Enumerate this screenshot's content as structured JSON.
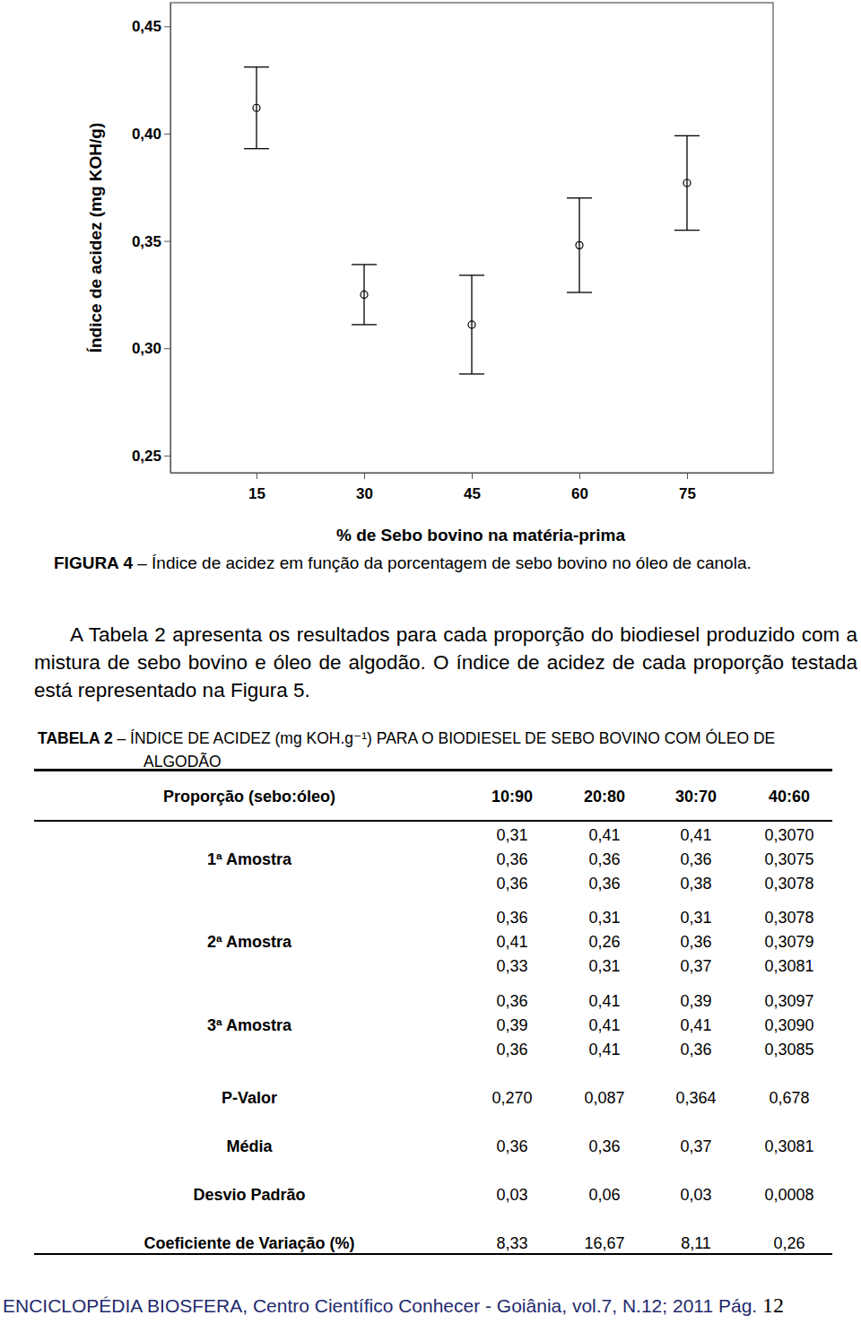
{
  "chart_data": {
    "type": "scatter",
    "x_label": "% de Sebo bovino na matéria-prima",
    "y_label": "Índice de acidez (mg KOH/g)",
    "categories": [
      "15",
      "30",
      "45",
      "60",
      "75"
    ],
    "values": [
      0.412,
      0.325,
      0.311,
      0.348,
      0.377
    ],
    "errors": [
      0.019,
      0.014,
      0.023,
      0.022,
      0.022
    ],
    "color": "#000000",
    "marker": "circle",
    "grid": false,
    "ylim": [
      0.242,
      0.461
    ],
    "yticks": [
      {
        "value": 0.25,
        "label": "0,25"
      },
      {
        "value": 0.3,
        "label": "0,30"
      },
      {
        "value": 0.35,
        "label": "0,35"
      },
      {
        "value": 0.4,
        "label": "0,40"
      },
      {
        "value": 0.45,
        "label": "0,45"
      }
    ]
  },
  "caption": {
    "label": "FIGURA 4",
    "text": "– Índice de acidez em função da porcentagem de sebo bovino no óleo de canola."
  },
  "paragraph": "A Tabela 2 apresenta os resultados para cada proporção do biodiesel produzido com a mistura de sebo bovino e óleo de algodão. O índice de acidez de cada proporção testada está representado na Figura 5.",
  "table": {
    "label": "TABELA 2",
    "title": "– ÍNDICE DE ACIDEZ (mg KOH.g⁻¹) PARA O BIODIESEL DE SEBO BOVINO COM ÓLEO DE ALGODÃO",
    "header": [
      "Proporção (sebo:óleo)",
      "10:90",
      "20:80",
      "30:70",
      "40:60"
    ],
    "groups": [
      {
        "label": "1ª Amostra",
        "rows": [
          [
            "0,31",
            "0,41",
            "0,41",
            "0,3070"
          ],
          [
            "0,36",
            "0,36",
            "0,36",
            "0,3075"
          ],
          [
            "0,36",
            "0,36",
            "0,38",
            "0,3078"
          ]
        ]
      },
      {
        "label": "2ª Amostra",
        "rows": [
          [
            "0,36",
            "0,31",
            "0,31",
            "0,3078"
          ],
          [
            "0,41",
            "0,26",
            "0,36",
            "0,3079"
          ],
          [
            "0,33",
            "0,31",
            "0,37",
            "0,3081"
          ]
        ]
      },
      {
        "label": "3ª Amostra",
        "rows": [
          [
            "0,36",
            "0,41",
            "0,39",
            "0,3097"
          ],
          [
            "0,39",
            "0,41",
            "0,41",
            "0,3090"
          ],
          [
            "0,36",
            "0,41",
            "0,36",
            "0,3085"
          ]
        ]
      }
    ],
    "stats": [
      {
        "label": "P-Valor",
        "values": [
          "0,270",
          "0,087",
          "0,364",
          "0,678"
        ]
      },
      {
        "label": "Média",
        "values": [
          "0,36",
          "0,36",
          "0,37",
          "0,3081"
        ]
      },
      {
        "label": "Desvio Padrão",
        "values": [
          "0,03",
          "0,06",
          "0,03",
          "0,0008"
        ]
      },
      {
        "label": "Coeficiente de Variação (%)",
        "values": [
          "8,33",
          "16,67",
          "8,11",
          "0,26"
        ]
      }
    ]
  },
  "footer": {
    "text": "ENCICLOPÉDIA BIOSFERA, Centro Científico Conhecer - Goiânia, vol.7, N.12; 2011 Pág.",
    "page": "12"
  }
}
